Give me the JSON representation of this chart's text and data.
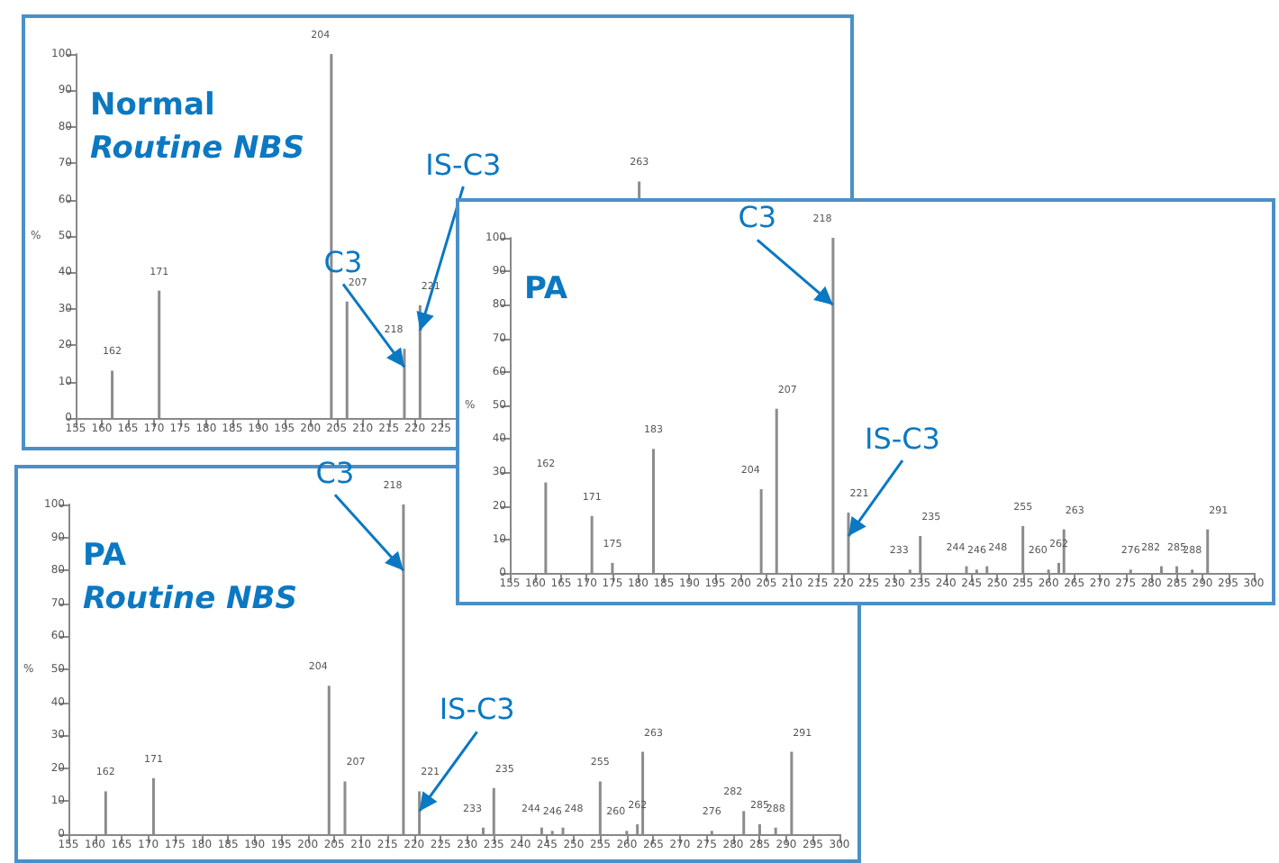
{
  "chart_data": [
    {
      "type": "bar",
      "x": [
        162,
        171,
        204,
        207,
        218,
        221,
        263
      ],
      "values": [
        13,
        35,
        100,
        32,
        19,
        31,
        65
      ],
      "color": "#8c8c8c",
      "xlim": [
        155,
        300
      ],
      "ylim": [
        0,
        100
      ],
      "xticks": [
        155,
        160,
        165,
        170,
        175,
        180,
        185,
        190,
        195,
        200,
        205,
        210,
        215,
        220,
        225
      ],
      "yticks": [
        0,
        10,
        20,
        30,
        40,
        50,
        60,
        70,
        80,
        90,
        100
      ],
      "ylabel": "%",
      "grid": false,
      "annotations": [
        "Normal",
        "Routine NBS",
        {
          "text": "162",
          "x": 162,
          "y": 13
        },
        {
          "text": "171",
          "x": 171,
          "y": 35
        },
        {
          "text": "204",
          "x": 204,
          "y": 100
        },
        {
          "text": "207",
          "x": 207,
          "y": 32
        },
        {
          "text": "218",
          "x": 218,
          "y": 19
        },
        {
          "text": "221",
          "x": 221,
          "y": 31
        },
        {
          "text": "263",
          "x": 263,
          "y": 65
        },
        {
          "text": "C3",
          "x": 218,
          "y": 14
        },
        {
          "text": "IS-C3",
          "x": 221,
          "y": 24
        }
      ]
    },
    {
      "type": "bar",
      "x": [
        162,
        171,
        175,
        183,
        204,
        207,
        218,
        221,
        233,
        235,
        244,
        246,
        248,
        255,
        260,
        262,
        263,
        276,
        282,
        285,
        288,
        291
      ],
      "values": [
        27,
        17,
        3,
        37,
        25,
        49,
        100,
        18,
        1,
        11,
        2,
        1,
        2,
        14,
        1,
        3,
        13,
        1,
        2,
        2,
        1,
        13
      ],
      "color": "#8c8c8c",
      "xlim": [
        155,
        300
      ],
      "ylim": [
        0,
        100
      ],
      "xticks": [
        155,
        160,
        165,
        170,
        175,
        180,
        185,
        190,
        195,
        200,
        205,
        210,
        215,
        220,
        225,
        230,
        235,
        240,
        245,
        250,
        255,
        260,
        265,
        270,
        275,
        280,
        285,
        290,
        295,
        300
      ],
      "yticks": [
        0,
        10,
        20,
        30,
        40,
        50,
        60,
        70,
        80,
        90,
        100
      ],
      "ylabel": "%",
      "grid": false,
      "annotations": [
        "PA",
        {
          "text": "162",
          "x": 162,
          "y": 27
        },
        {
          "text": "171",
          "x": 171,
          "y": 17
        },
        {
          "text": "175",
          "x": 175,
          "y": 3
        },
        {
          "text": "183",
          "x": 183,
          "y": 37
        },
        {
          "text": "204",
          "x": 204,
          "y": 25
        },
        {
          "text": "207",
          "x": 207,
          "y": 49
        },
        {
          "text": "218",
          "x": 218,
          "y": 100
        },
        {
          "text": "221",
          "x": 221,
          "y": 18
        },
        {
          "text": "233",
          "x": 233,
          "y": 1
        },
        {
          "text": "235",
          "x": 235,
          "y": 11
        },
        {
          "text": "244",
          "x": 244,
          "y": 2
        },
        {
          "text": "246",
          "x": 246,
          "y": 1
        },
        {
          "text": "248",
          "x": 248,
          "y": 2
        },
        {
          "text": "255",
          "x": 255,
          "y": 14
        },
        {
          "text": "260",
          "x": 260,
          "y": 1
        },
        {
          "text": "262",
          "x": 262,
          "y": 3
        },
        {
          "text": "263",
          "x": 263,
          "y": 13
        },
        {
          "text": "276",
          "x": 276,
          "y": 1
        },
        {
          "text": "282",
          "x": 282,
          "y": 2
        },
        {
          "text": "285",
          "x": 285,
          "y": 2
        },
        {
          "text": "288",
          "x": 288,
          "y": 1
        },
        {
          "text": "291",
          "x": 291,
          "y": 13
        },
        {
          "text": "C3",
          "x": 218,
          "y": 80
        },
        {
          "text": "IS-C3",
          "x": 221,
          "y": 11
        }
      ]
    },
    {
      "type": "bar",
      "x": [
        162,
        171,
        204,
        207,
        218,
        221,
        233,
        235,
        244,
        246,
        248,
        255,
        260,
        262,
        263,
        276,
        282,
        285,
        288,
        291
      ],
      "values": [
        13,
        17,
        45,
        16,
        100,
        13,
        2,
        14,
        2,
        1,
        2,
        16,
        1,
        3,
        25,
        1,
        7,
        3,
        2,
        25
      ],
      "color": "#8c8c8c",
      "xlim": [
        155,
        300
      ],
      "ylim": [
        0,
        100
      ],
      "xticks": [
        155,
        160,
        165,
        170,
        175,
        180,
        185,
        190,
        195,
        200,
        205,
        210,
        215,
        220,
        225,
        230,
        235,
        240,
        245,
        250,
        255,
        260,
        265,
        270,
        275,
        280,
        285,
        290,
        295,
        300
      ],
      "yticks": [
        0,
        10,
        20,
        30,
        40,
        50,
        60,
        70,
        80,
        90,
        100
      ],
      "ylabel": "%",
      "grid": false,
      "annotations": [
        "PA",
        "Routine NBS",
        {
          "text": "162",
          "x": 162,
          "y": 13
        },
        {
          "text": "171",
          "x": 171,
          "y": 17
        },
        {
          "text": "204",
          "x": 204,
          "y": 45
        },
        {
          "text": "207",
          "x": 207,
          "y": 16
        },
        {
          "text": "218",
          "x": 218,
          "y": 100
        },
        {
          "text": "221",
          "x": 221,
          "y": 13
        },
        {
          "text": "233",
          "x": 233,
          "y": 2
        },
        {
          "text": "235",
          "x": 235,
          "y": 14
        },
        {
          "text": "244",
          "x": 244,
          "y": 2
        },
        {
          "text": "246",
          "x": 246,
          "y": 1
        },
        {
          "text": "248",
          "x": 248,
          "y": 2
        },
        {
          "text": "255",
          "x": 255,
          "y": 16
        },
        {
          "text": "260",
          "x": 260,
          "y": 1
        },
        {
          "text": "262",
          "x": 262,
          "y": 3
        },
        {
          "text": "263",
          "x": 263,
          "y": 25
        },
        {
          "text": "276",
          "x": 276,
          "y": 1
        },
        {
          "text": "282",
          "x": 282,
          "y": 7
        },
        {
          "text": "285",
          "x": 285,
          "y": 3
        },
        {
          "text": "288",
          "x": 288,
          "y": 2
        },
        {
          "text": "291",
          "x": 291,
          "y": 25
        },
        {
          "text": "C3",
          "x": 218,
          "y": 80
        },
        {
          "text": "IS-C3",
          "x": 221,
          "y": 7
        }
      ]
    }
  ]
}
